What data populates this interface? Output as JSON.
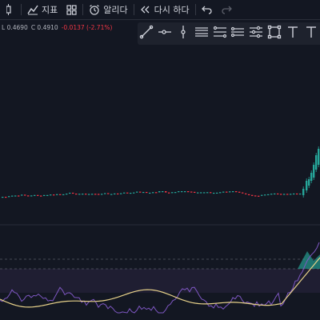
{
  "toolbar": {
    "indicators_label": "지표",
    "alert_label": "알리다",
    "replay_label": "다시 하다"
  },
  "ohlc": {
    "low": "L 0.4690",
    "close": "C 0.4910",
    "change": "-0.0137 (-2.71%)"
  },
  "colors": {
    "background": "#131722",
    "up": "#26a69a",
    "down": "#f23645",
    "rsi_line": "#7e57c2",
    "rsi_ma": "#e8d28a",
    "rsi_band": "#2a2540"
  },
  "drawing_tools": [
    "trend-line-icon",
    "horizontal-ray-icon",
    "vertical-line-icon",
    "parallel-channel-icon",
    "fib-retracement-icon",
    "pitchfork-icon",
    "gann-fan-icon",
    "rectangle-icon",
    "text-icon",
    "text-tool-icon"
  ]
}
